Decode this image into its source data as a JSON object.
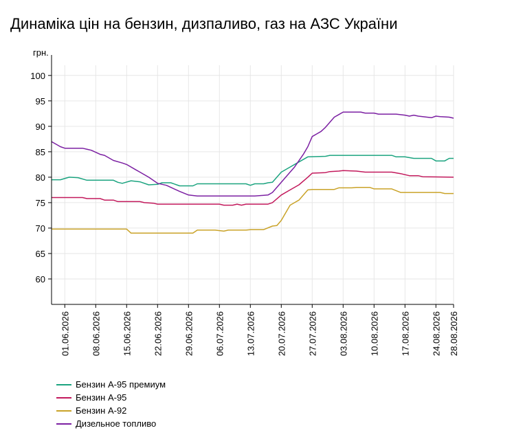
{
  "chart_data": {
    "type": "line",
    "title": "Динаміка цін на бензин, дизпаливо, газ на АЗС України",
    "ylabel": "грн.",
    "ylim": [
      55,
      102
    ],
    "yticks": [
      "60",
      "65",
      "70",
      "75",
      "80",
      "85",
      "90",
      "95",
      "100"
    ],
    "xlim": [
      "2026-05-29",
      "2026-08-28"
    ],
    "xticks": [
      "01.06.2026",
      "08.06.2026",
      "15.06.2026",
      "22.06.2026",
      "29.06.2026",
      "06.07.2026",
      "13.07.2026",
      "20.07.2026",
      "27.07.2026",
      "03.08.2026",
      "10.08.2026",
      "17.08.2026",
      "24.08.2026",
      "28.08.2026"
    ],
    "grid": true,
    "legend_position": "bottom-left",
    "series": [
      {
        "name": "Бензин А-95 премиум",
        "color": "#1aa37f",
        "points": [
          [
            "2026-05-29",
            79.5
          ],
          [
            "2026-05-31",
            79.5
          ],
          [
            "2026-06-02",
            80.0
          ],
          [
            "2026-06-04",
            79.9
          ],
          [
            "2026-06-06",
            79.4
          ],
          [
            "2026-06-12",
            79.4
          ],
          [
            "2026-06-13",
            79.0
          ],
          [
            "2026-06-14",
            78.8
          ],
          [
            "2026-06-16",
            79.3
          ],
          [
            "2026-06-18",
            79.1
          ],
          [
            "2026-06-20",
            78.5
          ],
          [
            "2026-06-22",
            78.6
          ],
          [
            "2026-06-23",
            78.9
          ],
          [
            "2026-06-25",
            78.9
          ],
          [
            "2026-06-27",
            78.3
          ],
          [
            "2026-06-30",
            78.3
          ],
          [
            "2026-07-01",
            78.7
          ],
          [
            "2026-07-12",
            78.7
          ],
          [
            "2026-07-13",
            78.4
          ],
          [
            "2026-07-14",
            78.7
          ],
          [
            "2026-07-16",
            78.7
          ],
          [
            "2026-07-17",
            78.9
          ],
          [
            "2026-07-18",
            79.0
          ],
          [
            "2026-07-20",
            81.0
          ],
          [
            "2026-07-22",
            82.0
          ],
          [
            "2026-07-24",
            83.0
          ],
          [
            "2026-07-26",
            84.0
          ],
          [
            "2026-07-30",
            84.1
          ],
          [
            "2026-07-31",
            84.3
          ],
          [
            "2026-08-14",
            84.3
          ],
          [
            "2026-08-15",
            84.0
          ],
          [
            "2026-08-17",
            84.0
          ],
          [
            "2026-08-19",
            83.7
          ],
          [
            "2026-08-23",
            83.7
          ],
          [
            "2026-08-24",
            83.2
          ],
          [
            "2026-08-26",
            83.2
          ],
          [
            "2026-08-27",
            83.7
          ],
          [
            "2026-08-28",
            83.7
          ]
        ]
      },
      {
        "name": "Бензин А-95",
        "color": "#c2185b",
        "points": [
          [
            "2026-05-29",
            76.0
          ],
          [
            "2026-06-05",
            76.0
          ],
          [
            "2026-06-06",
            75.8
          ],
          [
            "2026-06-09",
            75.8
          ],
          [
            "2026-06-10",
            75.5
          ],
          [
            "2026-06-12",
            75.5
          ],
          [
            "2026-06-13",
            75.2
          ],
          [
            "2026-06-18",
            75.2
          ],
          [
            "2026-06-19",
            75.0
          ],
          [
            "2026-06-21",
            74.9
          ],
          [
            "2026-06-22",
            74.7
          ],
          [
            "2026-07-06",
            74.7
          ],
          [
            "2026-07-07",
            74.5
          ],
          [
            "2026-07-09",
            74.5
          ],
          [
            "2026-07-10",
            74.7
          ],
          [
            "2026-07-11",
            74.5
          ],
          [
            "2026-07-12",
            74.7
          ],
          [
            "2026-07-17",
            74.7
          ],
          [
            "2026-07-18",
            75.0
          ],
          [
            "2026-07-20",
            76.5
          ],
          [
            "2026-07-22",
            77.5
          ],
          [
            "2026-07-24",
            78.5
          ],
          [
            "2026-07-26",
            80.0
          ],
          [
            "2026-07-27",
            80.8
          ],
          [
            "2026-07-30",
            80.9
          ],
          [
            "2026-07-31",
            81.1
          ],
          [
            "2026-08-02",
            81.2
          ],
          [
            "2026-08-03",
            81.3
          ],
          [
            "2026-08-06",
            81.2
          ],
          [
            "2026-08-08",
            81.0
          ],
          [
            "2026-08-14",
            81.0
          ],
          [
            "2026-08-16",
            80.7
          ],
          [
            "2026-08-18",
            80.3
          ],
          [
            "2026-08-20",
            80.3
          ],
          [
            "2026-08-21",
            80.1
          ],
          [
            "2026-08-28",
            80.0
          ]
        ]
      },
      {
        "name": "Бензин А-92",
        "color": "#c9a227",
        "points": [
          [
            "2026-05-29",
            69.8
          ],
          [
            "2026-06-15",
            69.8
          ],
          [
            "2026-06-16",
            69.0
          ],
          [
            "2026-06-30",
            69.0
          ],
          [
            "2026-07-01",
            69.6
          ],
          [
            "2026-07-05",
            69.6
          ],
          [
            "2026-07-06",
            69.5
          ],
          [
            "2026-07-07",
            69.4
          ],
          [
            "2026-07-08",
            69.6
          ],
          [
            "2026-07-12",
            69.6
          ],
          [
            "2026-07-13",
            69.7
          ],
          [
            "2026-07-16",
            69.7
          ],
          [
            "2026-07-18",
            70.4
          ],
          [
            "2026-07-19",
            70.5
          ],
          [
            "2026-07-20",
            71.5
          ],
          [
            "2026-07-22",
            74.5
          ],
          [
            "2026-07-23",
            75.0
          ],
          [
            "2026-07-24",
            75.5
          ],
          [
            "2026-07-26",
            77.5
          ],
          [
            "2026-07-27",
            77.6
          ],
          [
            "2026-08-01",
            77.6
          ],
          [
            "2026-08-02",
            77.9
          ],
          [
            "2026-08-05",
            77.9
          ],
          [
            "2026-08-06",
            78.0
          ],
          [
            "2026-08-09",
            78.0
          ],
          [
            "2026-08-10",
            77.7
          ],
          [
            "2026-08-14",
            77.7
          ],
          [
            "2026-08-16",
            77.0
          ],
          [
            "2026-08-25",
            77.0
          ],
          [
            "2026-08-26",
            76.8
          ],
          [
            "2026-08-28",
            76.8
          ]
        ]
      },
      {
        "name": "Дизельное топливо",
        "color": "#7b1fa2",
        "points": [
          [
            "2026-05-29",
            87.0
          ],
          [
            "2026-05-31",
            86.0
          ],
          [
            "2026-06-01",
            85.7
          ],
          [
            "2026-06-05",
            85.7
          ],
          [
            "2026-06-07",
            85.3
          ],
          [
            "2026-06-09",
            84.5
          ],
          [
            "2026-06-10",
            84.3
          ],
          [
            "2026-06-12",
            83.3
          ],
          [
            "2026-06-14",
            82.8
          ],
          [
            "2026-06-15",
            82.5
          ],
          [
            "2026-06-17",
            81.5
          ],
          [
            "2026-06-18",
            81.0
          ],
          [
            "2026-06-20",
            80.0
          ],
          [
            "2026-06-22",
            78.8
          ],
          [
            "2026-06-24",
            78.4
          ],
          [
            "2026-06-25",
            78.0
          ],
          [
            "2026-06-27",
            77.2
          ],
          [
            "2026-06-29",
            76.5
          ],
          [
            "2026-07-01",
            76.3
          ],
          [
            "2026-07-12",
            76.3
          ],
          [
            "2026-07-14",
            76.3
          ],
          [
            "2026-07-17",
            76.5
          ],
          [
            "2026-07-18",
            77.0
          ],
          [
            "2026-07-20",
            79.0
          ],
          [
            "2026-07-22",
            81.0
          ],
          [
            "2026-07-23",
            82.0
          ],
          [
            "2026-07-25",
            84.5
          ],
          [
            "2026-07-26",
            86.0
          ],
          [
            "2026-07-27",
            88.0
          ],
          [
            "2026-07-28",
            88.5
          ],
          [
            "2026-07-29",
            89.0
          ],
          [
            "2026-07-30",
            89.8
          ],
          [
            "2026-07-31",
            90.8
          ],
          [
            "2026-08-01",
            91.8
          ],
          [
            "2026-08-02",
            92.3
          ],
          [
            "2026-08-03",
            92.8
          ],
          [
            "2026-08-07",
            92.8
          ],
          [
            "2026-08-08",
            92.6
          ],
          [
            "2026-08-10",
            92.6
          ],
          [
            "2026-08-11",
            92.4
          ],
          [
            "2026-08-15",
            92.4
          ],
          [
            "2026-08-17",
            92.2
          ],
          [
            "2026-08-18",
            92.0
          ],
          [
            "2026-08-19",
            92.2
          ],
          [
            "2026-08-20",
            92.0
          ],
          [
            "2026-08-22",
            91.8
          ],
          [
            "2026-08-23",
            91.7
          ],
          [
            "2026-08-24",
            92.0
          ],
          [
            "2026-08-25",
            91.9
          ],
          [
            "2026-08-27",
            91.8
          ],
          [
            "2026-08-28",
            91.6
          ]
        ]
      }
    ]
  }
}
